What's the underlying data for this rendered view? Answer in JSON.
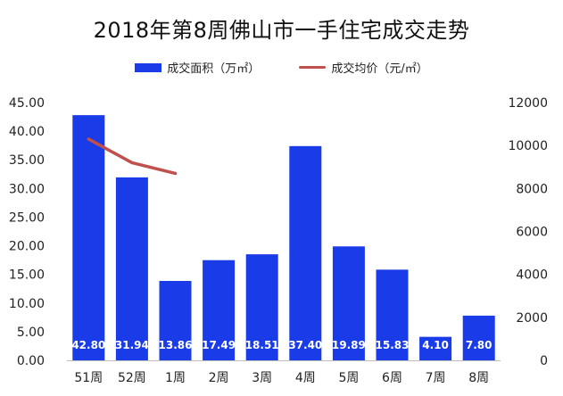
{
  "chart_data": {
    "type": "bar",
    "title": "2018年第8周佛山市一手住宅成交走势",
    "categories": [
      "51周",
      "52周",
      "1周",
      "2周",
      "3周",
      "4周",
      "5周",
      "6周",
      "7周",
      "8周"
    ],
    "series": [
      {
        "name": "成交面积（万㎡）",
        "type": "bar",
        "axis": "left",
        "color": "#1a3ce8",
        "values": [
          42.8,
          31.94,
          13.86,
          17.49,
          18.51,
          37.4,
          19.89,
          15.83,
          4.1,
          7.8
        ],
        "labels": [
          "42.80",
          "31.94",
          "13.86",
          "17.49",
          "18.51",
          "37.40",
          "19.89",
          "15.83",
          "4.10",
          "7.80"
        ]
      },
      {
        "name": "成交均价（元/㎡）",
        "type": "line",
        "axis": "right",
        "color": "#c0504d",
        "values": [
          10300,
          9200,
          8700,
          null,
          null,
          null,
          null,
          null,
          null,
          null
        ]
      }
    ],
    "ylim_left": [
      0,
      45
    ],
    "ylim_right": [
      0,
      12000
    ],
    "yticks_left": [
      "0.00",
      "5.00",
      "10.00",
      "15.00",
      "20.00",
      "25.00",
      "30.00",
      "35.00",
      "40.00",
      "45.00"
    ],
    "yticks_right": [
      "0",
      "2000",
      "4000",
      "6000",
      "8000",
      "10000",
      "12000"
    ],
    "legend_position": "top-center",
    "grid": false
  }
}
